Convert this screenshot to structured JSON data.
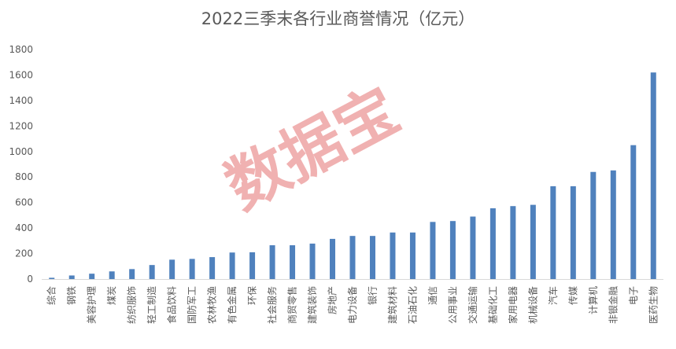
{
  "colors": {
    "bar": "#4f81bd",
    "grid": "#d9d9d9",
    "text": "#595959",
    "watermark": "#e57373"
  },
  "watermark_text": "数据宝",
  "chart_data": {
    "type": "bar",
    "title": "2022三季末各行业商誉情况（亿元）",
    "xlabel": "",
    "ylabel": "",
    "ylim": [
      0,
      1800
    ],
    "yticks": [
      0,
      200,
      400,
      600,
      800,
      1000,
      1200,
      1400,
      1600,
      1800
    ],
    "grid": false,
    "legend": "none",
    "categories": [
      "综合",
      "钢铁",
      "美容护理",
      "煤炭",
      "纺织服饰",
      "轻工制造",
      "食品饮料",
      "国防军工",
      "农林牧渔",
      "有色金属",
      "环保",
      "社会服务",
      "商贸零售",
      "建筑装饰",
      "房地产",
      "电力设备",
      "银行",
      "建筑材料",
      "石油石化",
      "通信",
      "公用事业",
      "交通运输",
      "基础化工",
      "家用电器",
      "机械设备",
      "汽车",
      "传媒",
      "计算机",
      "非银金融",
      "电子",
      "医药生物"
    ],
    "values": [
      10,
      28,
      42,
      60,
      78,
      110,
      152,
      158,
      172,
      208,
      210,
      265,
      265,
      278,
      315,
      338,
      338,
      365,
      365,
      448,
      455,
      490,
      555,
      572,
      582,
      728,
      728,
      840,
      852,
      1050,
      1620
    ]
  }
}
